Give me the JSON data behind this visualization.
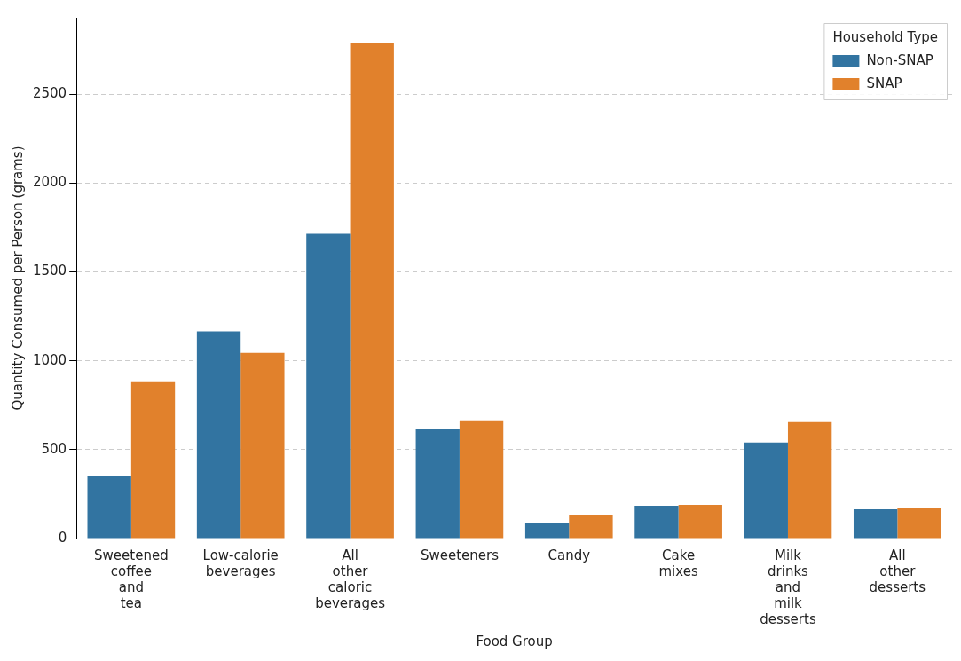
{
  "chart_data": {
    "type": "bar",
    "xlabel": "Food Group",
    "ylabel": "Quantity Consumed per Person (grams)",
    "legend_title": "Household Type",
    "legend": "top right",
    "grid": "y",
    "categories": [
      "Sweetened coffee and tea",
      "Low-calorie beverages",
      "All other caloric beverages",
      "Sweeteners",
      "Candy",
      "Cake mixes",
      "Milk drinks and milk desserts",
      "All other desserts"
    ],
    "series": [
      {
        "name": "Non-SNAP",
        "color": "#3274a1",
        "values": [
          350,
          1165,
          1715,
          615,
          85,
          185,
          540,
          165
        ]
      },
      {
        "name": "SNAP",
        "color": "#e1812c",
        "values": [
          885,
          1045,
          2790,
          665,
          135,
          190,
          655,
          172
        ]
      }
    ],
    "ylim": [
      0,
      2930
    ],
    "yticks": [
      0,
      500,
      1000,
      1500,
      2000,
      2500
    ]
  }
}
